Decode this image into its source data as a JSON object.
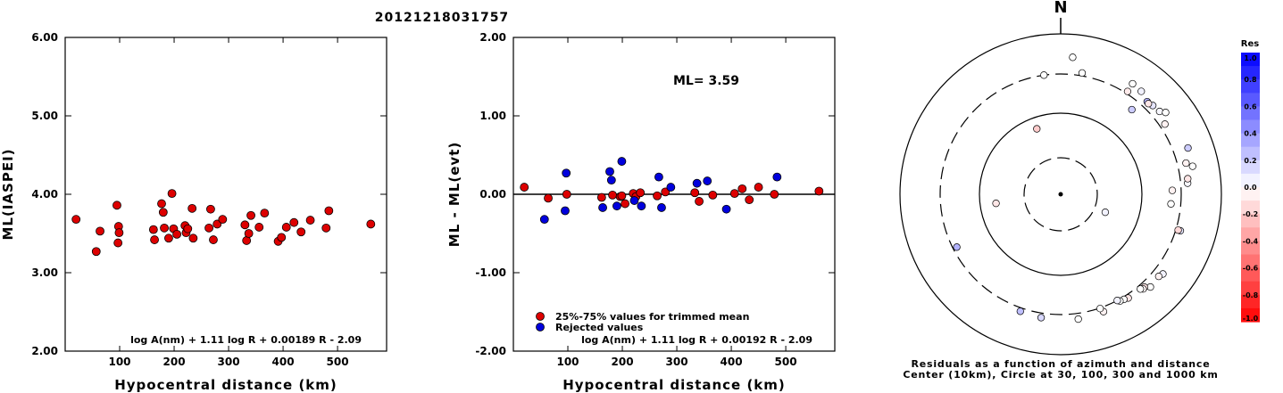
{
  "page_title": "20121218031757",
  "chart_data": [
    {
      "type": "scatter",
      "title": "",
      "xlabel": "Hypocentral distance (km)",
      "ylabel": "ML(IASPEI)",
      "xlim": [
        0,
        590
      ],
      "ylim": [
        2.0,
        6.0
      ],
      "x_ticks": [
        100,
        200,
        300,
        400,
        500
      ],
      "y_ticks": [
        "2.00",
        "3.00",
        "4.00",
        "5.00",
        "6.00"
      ],
      "y_tick_values": [
        2,
        3,
        4,
        5,
        6
      ],
      "formula": "log A(nm) + 1.11 log R + 0.00189 R - 2.09",
      "series": [
        {
          "color": "#dd0000",
          "x": [
            20,
            57,
            64,
            95,
            97,
            98,
            99,
            162,
            164,
            177,
            180,
            182,
            190,
            196,
            199,
            205,
            220,
            222,
            225,
            233,
            235,
            264,
            267,
            272,
            279,
            289,
            330,
            333,
            337,
            341,
            356,
            366,
            391,
            397,
            406,
            420,
            433,
            450,
            479,
            484,
            561
          ],
          "y": [
            3.68,
            3.27,
            3.53,
            3.86,
            3.38,
            3.59,
            3.51,
            3.55,
            3.42,
            3.88,
            3.77,
            3.57,
            3.44,
            4.01,
            3.56,
            3.49,
            3.6,
            3.51,
            3.56,
            3.82,
            3.44,
            3.57,
            3.81,
            3.42,
            3.62,
            3.68,
            3.61,
            3.41,
            3.5,
            3.73,
            3.58,
            3.76,
            3.4,
            3.45,
            3.58,
            3.64,
            3.52,
            3.67,
            3.57,
            3.79,
            3.62
          ]
        }
      ]
    },
    {
      "type": "scatter",
      "title": "",
      "xlabel": "Hypocentral distance (km)",
      "ylabel": "ML - ML(evt)",
      "xlim": [
        0,
        590
      ],
      "ylim": [
        -2.0,
        2.0
      ],
      "x_ticks": [
        100,
        200,
        300,
        400,
        500
      ],
      "y_ticks": [
        "-2.00",
        "-1.00",
        "0.00",
        "1.00",
        "2.00"
      ],
      "y_tick_values": [
        -2,
        -1,
        0,
        1,
        2
      ],
      "annotation": "ML= 3.59",
      "legend": [
        "25%-75% values for trimmed mean",
        "Rejected values"
      ],
      "legend_position": "bottom-left",
      "formula": "log A(nm) + 1.11 log R + 0.00192 R - 2.09",
      "series": [
        {
          "name": "25%-75% values for trimmed mean",
          "color": "#dd0000",
          "x": [
            20,
            64,
            98,
            162,
            182,
            196,
            199,
            205,
            220,
            225,
            233,
            264,
            279,
            333,
            341,
            366,
            406,
            420,
            433,
            450,
            479,
            561
          ],
          "y": [
            0.09,
            -0.05,
            0.0,
            -0.04,
            -0.01,
            -0.03,
            -0.02,
            -0.12,
            0.01,
            -0.03,
            0.02,
            -0.02,
            0.03,
            0.02,
            -0.09,
            -0.01,
            0.01,
            0.07,
            -0.07,
            0.09,
            0.0,
            0.04
          ]
        },
        {
          "name": "Rejected values",
          "color": "#0000dd",
          "x": [
            57,
            95,
            97,
            164,
            177,
            180,
            190,
            199,
            222,
            235,
            267,
            272,
            289,
            337,
            356,
            391,
            484
          ],
          "y": [
            -0.32,
            -0.21,
            0.27,
            -0.17,
            0.29,
            0.18,
            -0.15,
            0.42,
            -0.08,
            -0.15,
            0.22,
            -0.17,
            0.09,
            0.14,
            0.17,
            -0.19,
            0.22
          ]
        }
      ]
    },
    {
      "type": "scatter",
      "subtype": "polar",
      "title": "",
      "north_label": "N",
      "caption_line1": "Residuals as a function of azimuth and distance",
      "caption_line2": "Center (10km), Circle at 30, 100, 300 and 1000 km",
      "rings_km": [
        30,
        100,
        300,
        1000
      ],
      "colorbar": {
        "label": "Res",
        "range": [
          -1.0,
          1.0
        ],
        "high_color": "#0000ff",
        "low_color": "#ff0000",
        "tick_labels": [
          "1.0",
          "0.8",
          "0.6",
          "0.4",
          "0.2",
          "0.0",
          "-0.2",
          "-0.4",
          "-0.6",
          "-0.8",
          "-1.0"
        ],
        "tick_values": [
          1.0,
          0.8,
          0.6,
          0.4,
          0.2,
          0.0,
          -0.2,
          -0.4,
          -0.6,
          -0.8,
          -1.0
        ]
      },
      "points_azimuth_distance_residual": [
        {
          "az": 5,
          "dist": 600,
          "res": 0.0
        },
        {
          "az": 352,
          "dist": 300,
          "res": 0.0
        },
        {
          "az": 33,
          "dist": 500,
          "res": 0.0
        },
        {
          "az": 38,
          "dist": 480,
          "res": 0.05
        },
        {
          "az": 33,
          "dist": 340,
          "res": -0.08
        },
        {
          "az": 50,
          "dist": 450,
          "res": 0.03
        },
        {
          "az": 43,
          "dist": 410,
          "res": 0.3
        },
        {
          "az": 46,
          "dist": 430,
          "res": 0.1
        },
        {
          "az": 44,
          "dist": 400,
          "res": -0.1
        },
        {
          "az": 52,
          "dist": 520,
          "res": 0.0
        },
        {
          "az": 40,
          "dist": 250,
          "res": 0.2
        },
        {
          "az": 56,
          "dist": 390,
          "res": -0.05
        },
        {
          "az": 70,
          "dist": 560,
          "res": 0.2
        },
        {
          "az": 78,
          "dist": 550,
          "res": 0.0
        },
        {
          "az": 76,
          "dist": 450,
          "res": -0.05
        },
        {
          "az": 85,
          "dist": 420,
          "res": 0.03
        },
        {
          "az": 83,
          "dist": 430,
          "res": -0.1
        },
        {
          "az": 88,
          "dist": 255,
          "res": -0.05
        },
        {
          "az": 95,
          "dist": 250,
          "res": 0.0
        },
        {
          "az": 107,
          "dist": 380,
          "res": 0.1
        },
        {
          "az": 107,
          "dist": 340,
          "res": -0.15
        },
        {
          "az": 128,
          "dist": 460,
          "res": 0.05
        },
        {
          "az": 130,
          "dist": 430,
          "res": -0.05
        },
        {
          "az": 136,
          "dist": 450,
          "res": 0.0
        },
        {
          "az": 138,
          "dist": 380,
          "res": -0.1
        },
        {
          "az": 139,
          "dist": 390,
          "res": -0.03
        },
        {
          "az": 140,
          "dist": 360,
          "res": 0.0
        },
        {
          "az": 147,
          "dist": 360,
          "res": -0.1
        },
        {
          "az": 149,
          "dist": 340,
          "res": 0.0
        },
        {
          "az": 151,
          "dist": 330,
          "res": 0.0
        },
        {
          "az": 152,
          "dist": 300,
          "res": 0.05
        },
        {
          "az": 160,
          "dist": 380,
          "res": -0.05
        },
        {
          "az": 161,
          "dist": 310,
          "res": 0.0
        },
        {
          "az": 172,
          "dist": 400,
          "res": 0.0
        },
        {
          "az": 189,
          "dist": 380,
          "res": 0.15
        },
        {
          "az": 199,
          "dist": 360,
          "res": 0.25
        },
        {
          "az": 243,
          "dist": 280,
          "res": 0.3
        },
        {
          "az": 262,
          "dist": 75,
          "res": -0.1
        },
        {
          "az": 340,
          "dist": 82,
          "res": -0.2
        },
        {
          "az": 112,
          "dist": 48,
          "res": 0.05
        },
        {
          "az": 10,
          "dist": 350,
          "res": 0.0
        }
      ]
    }
  ]
}
